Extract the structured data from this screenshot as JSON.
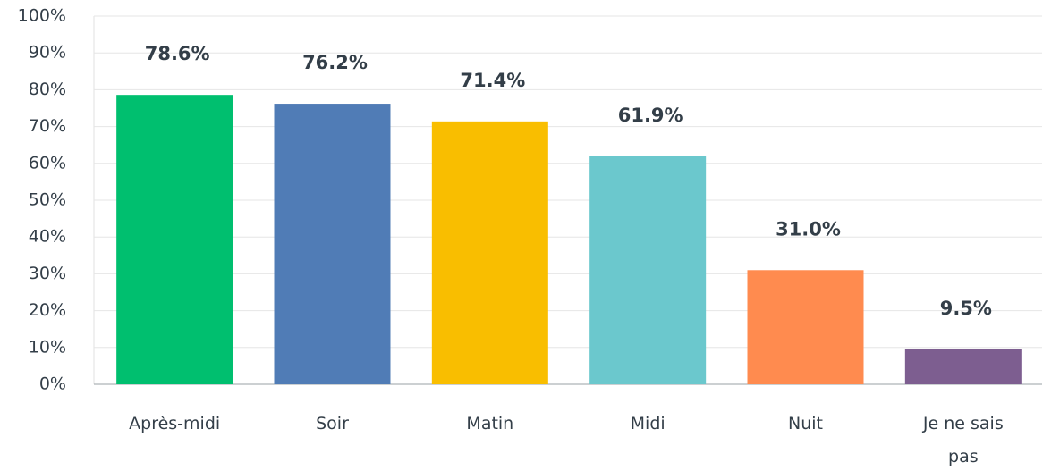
{
  "chart_data": {
    "type": "bar",
    "categories": [
      "Après-midi",
      "Soir",
      "Matin",
      "Midi",
      "Nuit",
      "Je ne sais pas"
    ],
    "values": [
      78.6,
      76.2,
      71.4,
      61.9,
      31.0,
      9.5
    ],
    "value_labels": [
      "78.6%",
      "76.2%",
      "71.4%",
      "61.9%",
      "31.0%",
      "9.5%"
    ],
    "colors": [
      "#00bf6f",
      "#507cb6",
      "#f9be00",
      "#6bc8cd",
      "#ff8b4f",
      "#7d5e90"
    ],
    "ylim": [
      0,
      100
    ],
    "yticks": [
      {
        "value": 0,
        "label": "0%"
      },
      {
        "value": 10,
        "label": "10%"
      },
      {
        "value": 20,
        "label": "20%"
      },
      {
        "value": 30,
        "label": "30%"
      },
      {
        "value": 40,
        "label": "40%"
      },
      {
        "value": 50,
        "label": "50%"
      },
      {
        "value": 60,
        "label": "60%"
      },
      {
        "value": 70,
        "label": "70%"
      },
      {
        "value": 80,
        "label": "80%"
      },
      {
        "value": 90,
        "label": "90%"
      },
      {
        "value": 100,
        "label": "100%"
      }
    ],
    "grid": true
  }
}
